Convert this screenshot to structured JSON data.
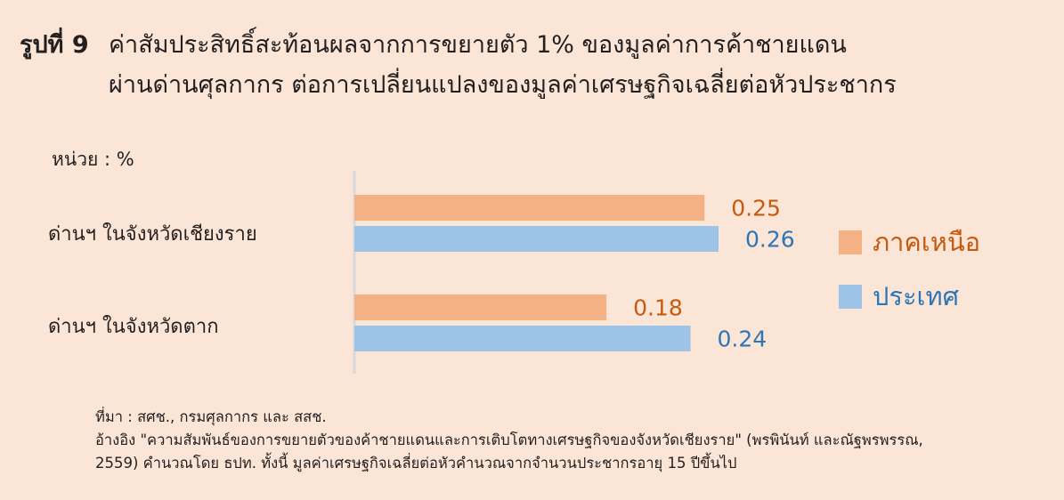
{
  "figure": {
    "label": "รูปที่ 9",
    "title_line1": "ค่าสัมประสิทธิ์สะท้อนผลจากการขยายตัว 1% ของมูลค่าการค้าชายแดน",
    "title_line2": "ผ่านด่านศุลกากร ต่อการเปลี่ยนแปลงของมูลค่าเศรษฐกิจเฉลี่ยต่อหัวประชากร",
    "unit": "หน่วย : %"
  },
  "colors": {
    "north": "#f4b183",
    "country": "#9dc3e6",
    "north_label": "#c55a11",
    "country_label": "#2e75b6",
    "axis": "#d9d9d9",
    "background": "#fbe5d6"
  },
  "chart_data": {
    "type": "bar",
    "orientation": "horizontal",
    "categories": [
      "ด่านฯ ในจังหวัดเชียงราย",
      "ด่านฯ ในจังหวัดตาก"
    ],
    "series": [
      {
        "name": "ภาคเหนือ",
        "values": [
          0.25,
          0.18
        ]
      },
      {
        "name": "ประเทศ",
        "values": [
          0.26,
          0.24
        ]
      }
    ],
    "value_labels": [
      [
        "0.25",
        "0.18"
      ],
      [
        "0.26",
        "0.24"
      ]
    ],
    "xlim": [
      0,
      0.26
    ],
    "grid": false,
    "legend_position": "right"
  },
  "source": {
    "line1": "ที่มา : สศช., กรมศุลกากร และ สสช.",
    "line2": "อ้างอิง \"ความสัมพันธ์ของการขยายตัวของค้าชายแดนและการเติบโตทางเศรษฐกิจของจังหวัดเชียงราย\" (พรพินันท์ และณัฐพรพรรณ,",
    "line3": "2559) คำนวณโดย ธปท. ทั้งนี้ มูลค่าเศรษฐกิจเฉลี่ยต่อหัวคำนวณจากจำนวนประชากรอายุ 15 ปีขึ้นไป"
  }
}
